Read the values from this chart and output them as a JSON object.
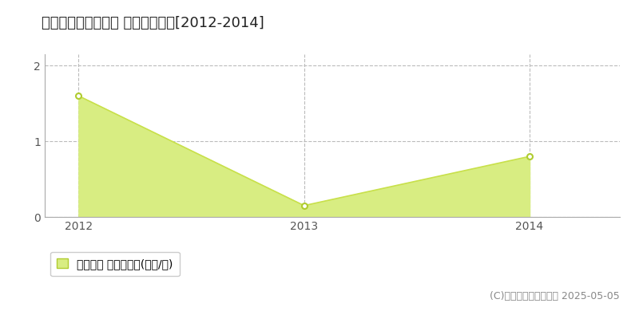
{
  "title": "秩父郡小鹿野町般若 土地価格推移[2012-2014]",
  "x_values": [
    2012,
    2013,
    2014
  ],
  "y_values": [
    1.6,
    0.15,
    0.8
  ],
  "xlim": [
    2011.85,
    2014.4
  ],
  "ylim": [
    0,
    2.15
  ],
  "yticks": [
    0,
    1,
    2
  ],
  "xticks": [
    2012,
    2013,
    2014
  ],
  "line_color": "#c8e04a",
  "fill_color": "#d8ed82",
  "marker_fill_color": "#ffffff",
  "marker_edge_color": "#b0cc30",
  "grid_color": "#bbbbbb",
  "background_color": "#ffffff",
  "legend_label": "土地価格 平均坪単価(万円/坪)",
  "copyright_text": "(C)土地価格ドットコム 2025-05-05",
  "title_fontsize": 13,
  "legend_fontsize": 10,
  "copyright_fontsize": 9,
  "axis_label_color": "#555555",
  "spine_color": "#aaaaaa"
}
